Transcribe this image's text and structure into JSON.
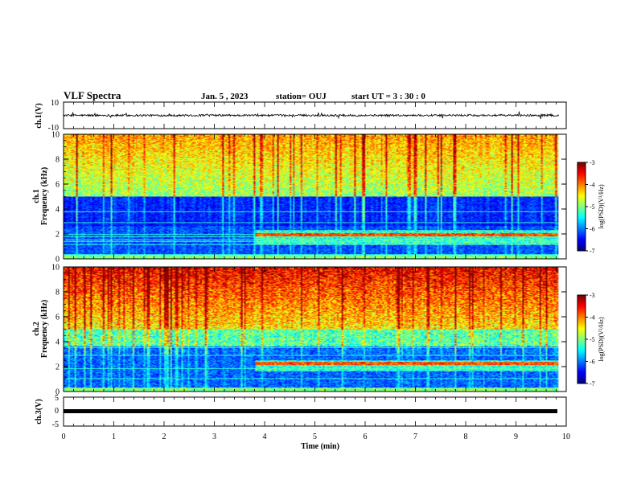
{
  "header": {
    "title": "VLF Spectra",
    "date": "Jan. 5  , 2023",
    "station": "station= OUJ",
    "start": "start  UT =   3  : 30 : 0"
  },
  "chart_data": [
    {
      "type": "line",
      "name": "ch1-waveform",
      "ylabel": "ch.1(V)",
      "ylim": [
        -10,
        10
      ],
      "yticks": [
        "10",
        "-10"
      ],
      "baseline": 0,
      "noise_amplitude": 1.5,
      "x_end": 9.85
    },
    {
      "type": "heatmap",
      "name": "ch1-spectrogram",
      "ylabel": "ch.1\nFrequency  (kHz)",
      "ylim": [
        0,
        10
      ],
      "yticks": [
        "0",
        "2",
        "4",
        "6",
        "8",
        "10"
      ],
      "transition_time": 3.8,
      "emission_band_khz": [
        1.1,
        2.3
      ],
      "quiet_band_khz": [
        2.8,
        5.0
      ],
      "x_end": 9.85,
      "colorbar": {
        "label": "log(PSD)(V²/Hz)",
        "range": [
          -7,
          -3
        ],
        "ticks": [
          "-3",
          "-4",
          "-5",
          "-6",
          "-7"
        ]
      }
    },
    {
      "type": "heatmap",
      "name": "ch2-spectrogram",
      "ylabel": "ch.2\nFrequency  (kHz)",
      "ylim": [
        0,
        10
      ],
      "yticks": [
        "0",
        "2",
        "4",
        "6",
        "8",
        "10"
      ],
      "transition_time": 3.8,
      "emission_band_khz": [
        1.6,
        2.5
      ],
      "quiet_band_khz": [
        1.0,
        3.5
      ],
      "x_end": 9.85,
      "colorbar": {
        "label": "log(PSD)(V²/Hz)",
        "range": [
          -7,
          -3
        ],
        "ticks": [
          "-3",
          "-4",
          "-5",
          "-6",
          "-7"
        ]
      }
    },
    {
      "type": "line",
      "name": "ch3-waveform",
      "ylabel": "ch.3(V)",
      "ylim": [
        -5,
        5
      ],
      "yticks": [
        "5",
        "0",
        "-5"
      ],
      "baseline": 0,
      "x_end": 9.85
    }
  ],
  "xaxis": {
    "xlabel": "Time  (min)",
    "xlim": [
      0,
      10
    ],
    "ticks": [
      "0",
      "1",
      "2",
      "3",
      "4",
      "5",
      "6",
      "7",
      "8",
      "9",
      "10"
    ]
  }
}
